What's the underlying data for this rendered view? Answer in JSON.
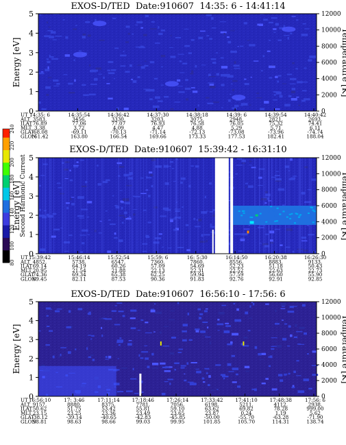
{
  "panels": [
    {
      "title": "EXOS-D/TED  Date:910607  14:35: 6 - 14:41:14",
      "ylabel": "Energy [eV]",
      "ylabel_right": "Temperature [K]",
      "energy_ticks": [
        "0",
        "1",
        "2",
        "3",
        "4",
        "5"
      ],
      "temp_ticks": [
        "0",
        "2000",
        "4000",
        "6000",
        "8000",
        "10000",
        "12000"
      ],
      "row_labels": [
        "UT",
        "ALT",
        "ILAT",
        "MLT",
        "GLAT",
        "GLON"
      ],
      "columns": [
        [
          "14:35: 6",
          "3583.",
          "76.89",
          "3.38",
          "-68.08",
          "161.42"
        ],
        [
          "14:35:54",
          "3456.",
          "77.06",
          "3.72",
          "-69.11",
          "163.80"
        ],
        [
          "14:36:42",
          "3330.",
          "77.07",
          "4.09",
          "-70.13",
          "166.54"
        ],
        [
          "14:37:30",
          "3203.",
          "76.93",
          "4.47",
          "-71.14",
          "169.66"
        ],
        [
          "14:38:18",
          "3075.",
          "76.58",
          "4.88",
          "-72.13",
          "173.33"
        ],
        [
          "14:39: 6",
          "2948.",
          "76.05",
          "5.29",
          "-73.08",
          "177.53"
        ],
        [
          "14:39:54",
          "2821.",
          "75.32",
          "5.71",
          "-73.96",
          "182.41"
        ],
        [
          "14:40:42",
          "2693.",
          "74.41",
          "6.11",
          "-74.74",
          "188.04"
        ]
      ]
    },
    {
      "title": "EXOS-D/TED  Date:910607  15:39:42 - 16:31:10",
      "ylabel": "Energy [eV]",
      "ylabel_right": "Temperature [K]",
      "energy_ticks": [
        "0",
        "1",
        "2",
        "3",
        "4",
        "5"
      ],
      "temp_ticks": [
        "0",
        "2000",
        "4000",
        "6000",
        "8000",
        "10000",
        "12000"
      ],
      "row_labels": [
        "UT",
        "ALT",
        "ILAT",
        "MLT",
        "GLAT",
        "GLON"
      ],
      "columns": [
        [
          "15:39:42",
          "4852.",
          "69.14",
          "20.95",
          "74.36",
          "69.45"
        ],
        [
          "15:46:14",
          "5738.",
          "64.19",
          "21.54",
          "69.34",
          "82.11"
        ],
        [
          "15:52:54",
          "6547.",
          "60.26",
          "21.88",
          "65.38",
          "87.53"
        ],
        [
          "15:59: 6",
          "7360.",
          "57.09",
          "22.13",
          "62.25",
          "90.36"
        ],
        [
          "16: 5:30",
          "7860.",
          "54.69",
          "22.31",
          "59.94",
          "91.83"
        ],
        [
          "16:14:50",
          "8556.",
          "52.23",
          "22.52",
          "57.59",
          "92.76"
        ],
        [
          "16:20:38",
          "8883.",
          "51.18",
          "22.63",
          "56.60",
          "92.91"
        ],
        [
          "16:26:30",
          "9133.",
          "50.43",
          "22.73",
          "55.90",
          "92.85"
        ]
      ]
    },
    {
      "title": "EXOS-D/TED  Date:910607  16:56:10 - 17:56: 6",
      "ylabel": "Energy [eV]",
      "ylabel_right": "Temperature [K]",
      "energy_ticks": [
        "0",
        "1",
        "2",
        "3",
        "4",
        "5"
      ],
      "temp_ticks": [
        "0",
        "2000",
        "4000",
        "6000",
        "8000",
        "10000",
        "12000"
      ],
      "row_labels": [
        "UT",
        "ALT",
        "ILAT",
        "MLT",
        "GLAT",
        "GLON"
      ],
      "columns": [
        [
          "16:56:10",
          "9157.",
          "50.62",
          "23.15",
          "-38.12",
          "98.81"
        ],
        [
          "17: 3:46",
          "8880.",
          "51.75",
          "23.25",
          "-39.14",
          "98.63"
        ],
        [
          "17:11:14",
          "8375.",
          "53.42",
          "23.36",
          "-40.65",
          "98.66"
        ],
        [
          "17:18:46",
          "7781.",
          "55.81",
          "23.49",
          "-42.83",
          "99.03"
        ],
        [
          "17:26:14",
          "7056.",
          "59.10",
          "23.65",
          "-45.85",
          "99.95"
        ],
        [
          "17:33:42",
          "6198.",
          "63.62",
          "23.87",
          "-50.00",
          "101.85"
        ],
        [
          "17:41:10",
          "5211.",
          "69.82",
          "0.24",
          "-55.70",
          "105.70"
        ],
        [
          "17:48:38",
          "4112.",
          "78.28",
          "1.19",
          "-63.28",
          "114.31"
        ],
        [
          "17:56: 6",
          "2938.",
          "999.00",
          "5.62",
          "-71.90",
          "138.74"
        ]
      ]
    }
  ],
  "colorbar": {
    "label": "Second Harmonic Current",
    "ticks": [
      "80",
      "100",
      "120",
      "140",
      "160",
      "180",
      "200",
      "220",
      "240"
    ]
  },
  "chart_data": [
    {
      "type": "heatmap",
      "title": "EXOS-D/TED  Date:910607  14:35: 6 - 14:41:14",
      "ylabel": "Energy [eV]",
      "ylabel_right": "Temperature [K]",
      "ylim": [
        0,
        5
      ],
      "ylim_right": [
        0,
        12000
      ],
      "colorscale_range": [
        80,
        240
      ],
      "background_value": 115,
      "features": [
        {
          "ut": "14:38:40",
          "energy": 1.4,
          "value": 140
        },
        {
          "ut": "14:36:20",
          "energy": 4.5,
          "value": 135
        },
        {
          "ut": "14:40:30",
          "energy": 4.2,
          "value": 130
        }
      ]
    },
    {
      "type": "heatmap",
      "title": "EXOS-D/TED  Date:910607  15:39:42 - 16:31:10",
      "ylabel": "Energy [eV]",
      "ylabel_right": "Temperature [K]",
      "ylim": [
        0,
        5
      ],
      "ylim_right": [
        0,
        12000
      ],
      "colorscale_range": [
        80,
        240
      ],
      "background_value": 120,
      "no_data_gaps": [
        [
          "16:11:30",
          "16:13:20"
        ],
        [
          "16:13:40",
          "16:14:10"
        ]
      ],
      "features": [
        {
          "ut": "16:14:50-16:31:10",
          "energy": 1.9,
          "value": 145
        },
        {
          "ut": "16:18:00",
          "energy": 1.6,
          "value": 170
        },
        {
          "ut": "16:17:10",
          "energy": 1.2,
          "value": 230
        }
      ]
    },
    {
      "type": "heatmap",
      "title": "EXOS-D/TED  Date:910607  16:56:10 - 17:56: 6",
      "ylabel": "Energy [eV]",
      "ylabel_right": "Temperature [K]",
      "ylim": [
        0,
        5
      ],
      "ylim_right": [
        0,
        12000
      ],
      "colorscale_range": [
        80,
        240
      ],
      "background_value": 105,
      "features": [
        {
          "ut": "16:56:10-17:05:00",
          "energy": 0.9,
          "value": 130
        },
        {
          "ut": "17:18:00",
          "energy": 0.4,
          "value": 230
        },
        {
          "ut": "17:19:30",
          "energy": 2.7,
          "value": 210
        },
        {
          "ut": "17:41:00",
          "energy": 2.7,
          "value": 210
        }
      ]
    }
  ]
}
